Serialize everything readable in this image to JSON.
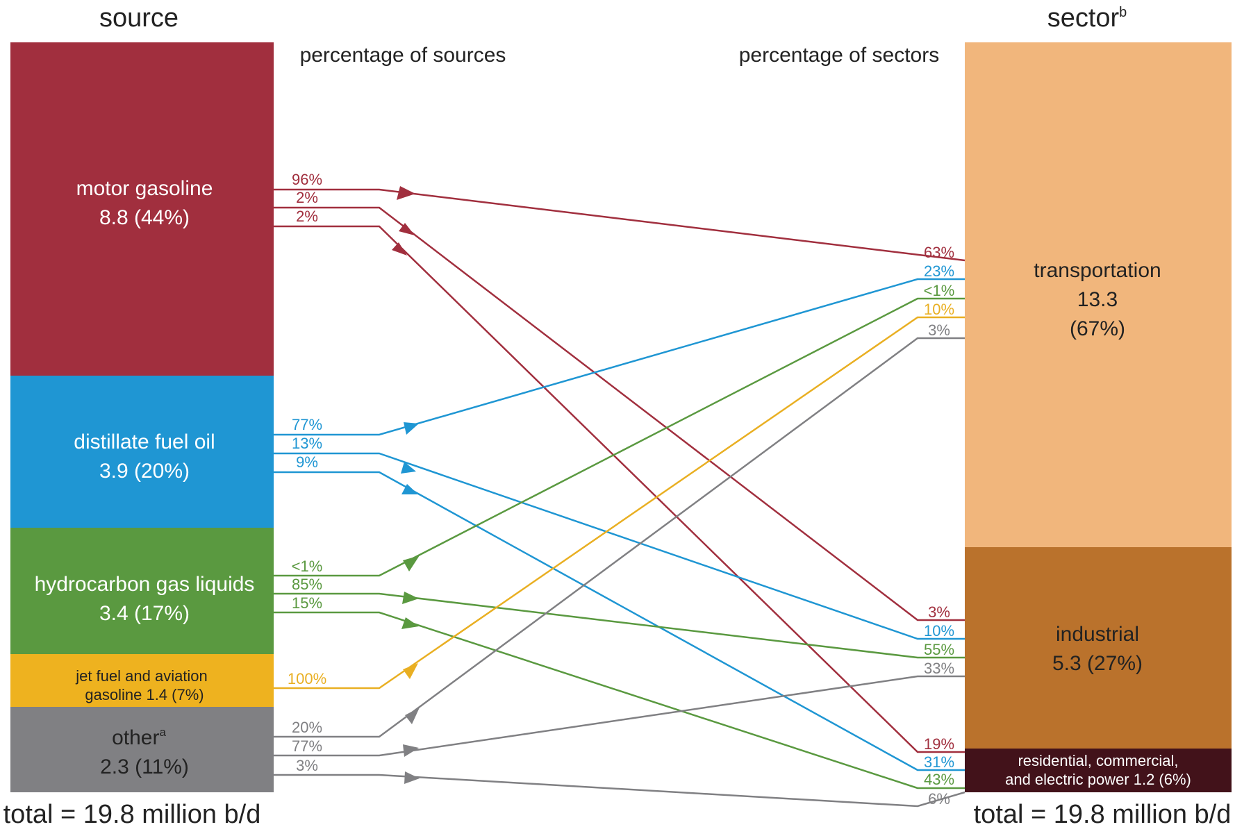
{
  "headers": {
    "source": "source",
    "sector": "sector",
    "sector_note": "b",
    "pct_sources": "percentage of sources",
    "pct_sectors": "percentage of sectors"
  },
  "totals": {
    "left": "total = 19.8 million b/d",
    "right": "total = 19.8 million b/d"
  },
  "sources": {
    "motor_gasoline": {
      "name": "motor gasoline",
      "value": "8.8 (44%)",
      "color": "#A12F3E"
    },
    "distillate": {
      "name": "distillate fuel oil",
      "value": "3.9 (20%)",
      "color": "#1F96D3"
    },
    "hgl": {
      "name": "hydrocarbon gas liquids",
      "value": "3.4 (17%)",
      "color": "#5A9940"
    },
    "jet": {
      "line1": "jet fuel and aviation",
      "line2": "gasoline  1.4 (7%)",
      "color": "#EEB21F"
    },
    "other": {
      "name": "other",
      "note": "a",
      "value": "2.3 (11%)",
      "color": "#808083"
    }
  },
  "sectors": {
    "transportation": {
      "name": "transportation",
      "value": "13.3",
      "share": "(67%)",
      "color": "#F1B67C"
    },
    "industrial": {
      "name": "industrial",
      "value": "5.3  (27%)",
      "color": "#BA722C"
    },
    "residential": {
      "line1": "residential, commercial,",
      "line2": "and electric power  1.2  (6%)",
      "color": "#42121A"
    }
  },
  "flows": [
    {
      "from": "motor gasoline",
      "to": "transportation",
      "source_pct": "96%",
      "sector_pct": "63%",
      "color": "#A12F3E"
    },
    {
      "from": "motor gasoline",
      "to": "industrial",
      "source_pct": "2%",
      "sector_pct": "3%",
      "color": "#A12F3E"
    },
    {
      "from": "motor gasoline",
      "to": "residential, commercial, and electric power",
      "source_pct": "2%",
      "sector_pct": "19%",
      "color": "#A12F3E"
    },
    {
      "from": "distillate fuel oil",
      "to": "transportation",
      "source_pct": "77%",
      "sector_pct": "23%",
      "color": "#1F96D3"
    },
    {
      "from": "distillate fuel oil",
      "to": "industrial",
      "source_pct": "13%",
      "sector_pct": "10%",
      "color": "#1F96D3"
    },
    {
      "from": "distillate fuel oil",
      "to": "residential, commercial, and electric power",
      "source_pct": "9%",
      "sector_pct": "31%",
      "color": "#1F96D3"
    },
    {
      "from": "hydrocarbon gas liquids",
      "to": "transportation",
      "source_pct": "<1%",
      "sector_pct": "<1%",
      "color": "#5A9940"
    },
    {
      "from": "hydrocarbon gas liquids",
      "to": "industrial",
      "source_pct": "85%",
      "sector_pct": "55%",
      "color": "#5A9940"
    },
    {
      "from": "hydrocarbon gas liquids",
      "to": "residential, commercial, and electric power",
      "source_pct": "15%",
      "sector_pct": "43%",
      "color": "#5A9940"
    },
    {
      "from": "jet fuel and aviation gasoline",
      "to": "transportation",
      "source_pct": "100%",
      "sector_pct": "10%",
      "color": "#E9AF22"
    },
    {
      "from": "other",
      "to": "transportation",
      "source_pct": "20%",
      "sector_pct": "3%",
      "color": "#808083"
    },
    {
      "from": "other",
      "to": "industrial",
      "source_pct": "77%",
      "sector_pct": "33%",
      "color": "#808083"
    },
    {
      "from": "other",
      "to": "residential, commercial, and electric power",
      "source_pct": "3%",
      "sector_pct": "6%",
      "color": "#808083"
    }
  ]
}
